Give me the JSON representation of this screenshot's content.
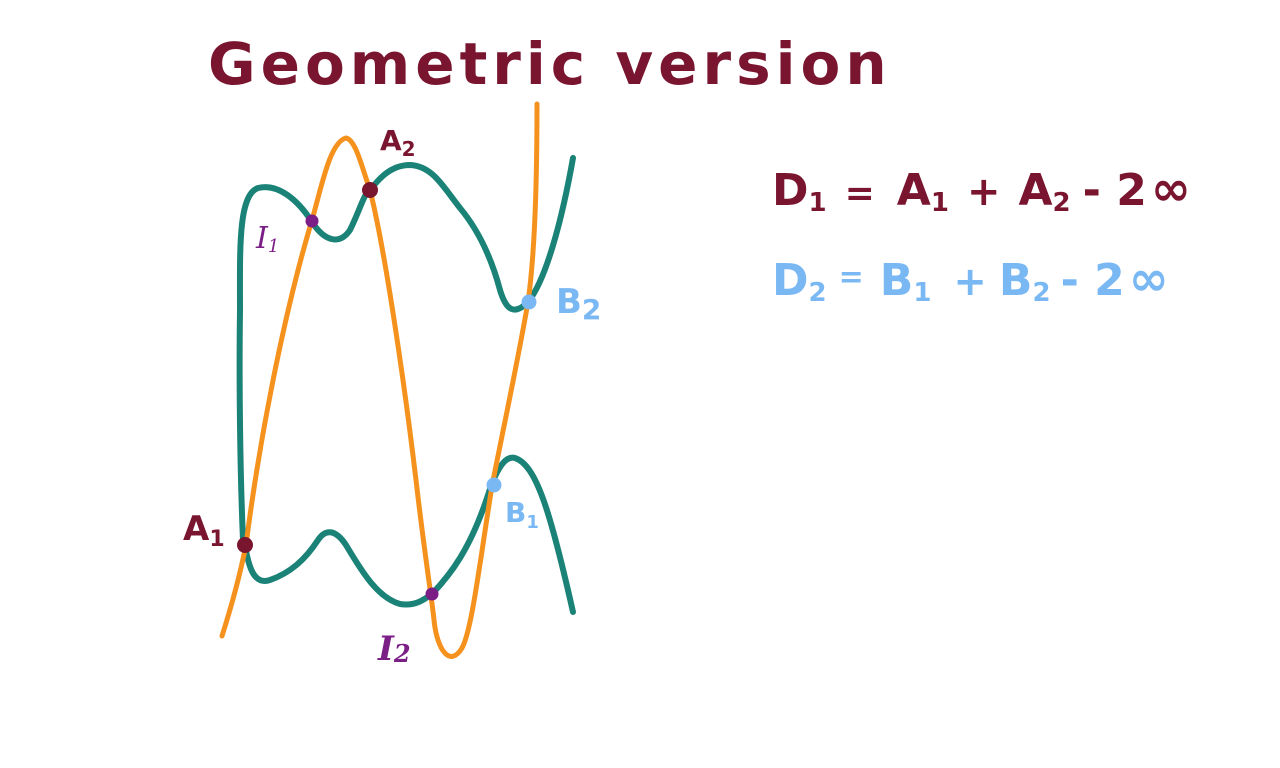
{
  "title": "Geometric version",
  "colors": {
    "maroon": "#7a1530",
    "teal": "#1a8276",
    "orange": "#f5921e",
    "purple": "#7b1f86",
    "light_blue": "#7ab8f4"
  },
  "points": {
    "A1": {
      "letter": "A",
      "subscript": "1"
    },
    "A2": {
      "letter": "A",
      "subscript": "2"
    },
    "I1": {
      "letter": "I",
      "subscript": "1"
    },
    "I2": {
      "letter": "I",
      "subscript": "2"
    },
    "B1": {
      "letter": "B",
      "subscript": "1"
    },
    "B2": {
      "letter": "B",
      "subscript": "2"
    }
  },
  "equations": {
    "d1": {
      "lhs": "D",
      "lhs_sub": "1",
      "eq": "=",
      "t1": "A",
      "t1_sub": "1",
      "plus": "+",
      "t2": "A",
      "t2_sub": "2",
      "minus": "- 2",
      "inf": "∞"
    },
    "d2": {
      "lhs": "D",
      "lhs_sub": "2",
      "eq": "=",
      "t1": "B",
      "t1_sub": "1",
      "plus": "+",
      "t2": "B",
      "t2_sub": "2",
      "minus": "- 2",
      "inf": "∞"
    }
  }
}
